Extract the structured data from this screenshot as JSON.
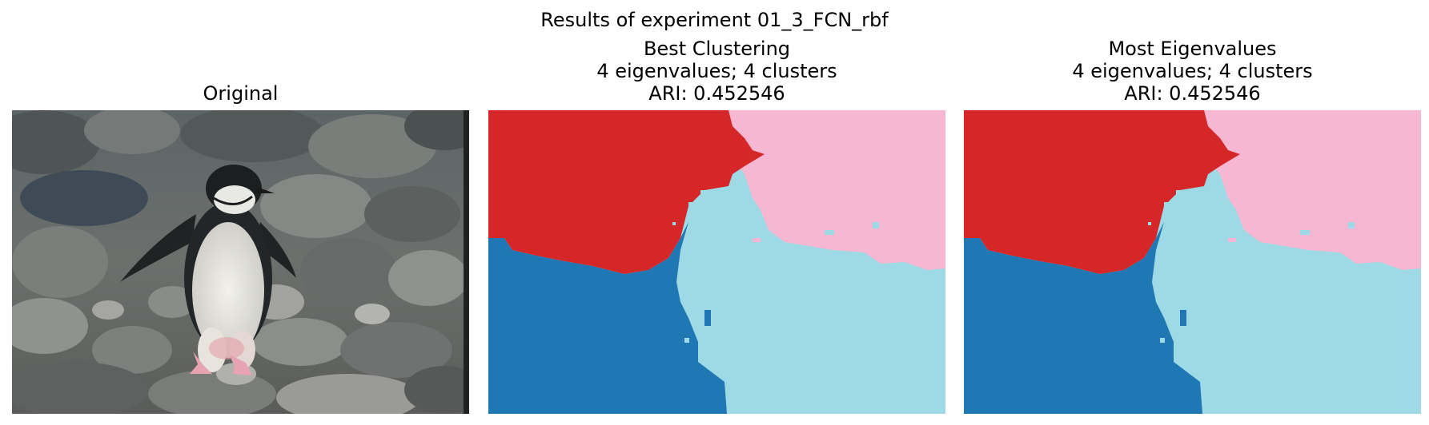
{
  "figure": {
    "suptitle": "Results of experiment 01_3_FCN_rbf",
    "panels": [
      {
        "title_lines": [
          "Original"
        ],
        "content": "photo: chinstrap penguin walking on grey rocks"
      },
      {
        "title_lines": [
          "Best Clustering",
          "4 eigenvalues; 4 clusters",
          "ARI: 0.452546"
        ],
        "content": "4-cluster segmentation map"
      },
      {
        "title_lines": [
          "Most Eigenvalues",
          "4 eigenvalues; 4 clusters",
          "ARI: 0.452546"
        ],
        "content": "4-cluster segmentation map"
      }
    ]
  },
  "colors": {
    "cluster_red": "#d62728",
    "cluster_pink": "#f7b6d2",
    "cluster_blue": "#1f77b4",
    "cluster_lightblue": "#9edae5",
    "rock_dark": "#4a4e4e",
    "rock_mid": "#6f7371",
    "rock_light": "#9a9c98"
  }
}
